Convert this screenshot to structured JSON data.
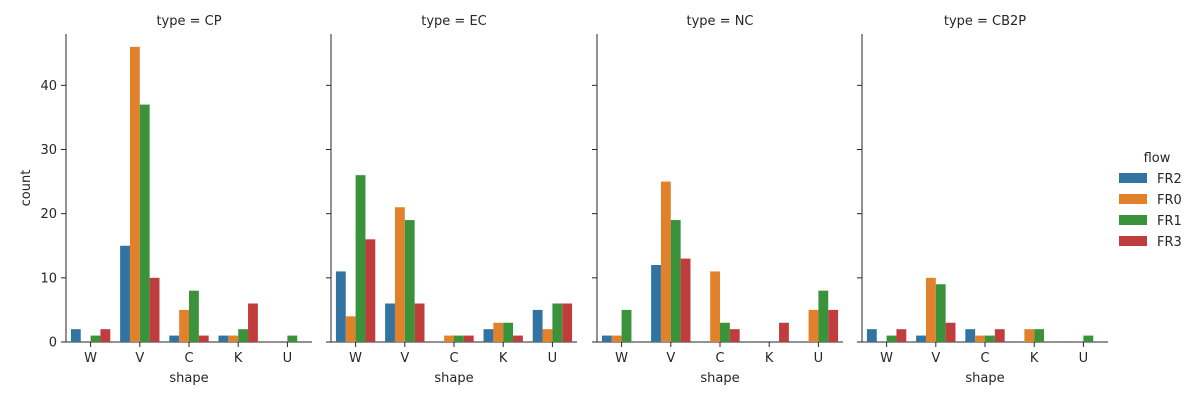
{
  "chart_data": {
    "type": "bar",
    "legend": {
      "title": "flow",
      "placement": "right",
      "entries": [
        "FR2",
        "FR0",
        "FR1",
        "FR3"
      ]
    },
    "series_colors": {
      "FR2": "#3274a1",
      "FR0": "#e1812c",
      "FR1": "#3a923a",
      "FR3": "#c03d3e"
    },
    "ylabel": "count",
    "xlabel": "shape",
    "ylim": [
      0,
      48
    ],
    "yticks": [
      0,
      10,
      20,
      30,
      40
    ],
    "categories": [
      "W",
      "V",
      "C",
      "K",
      "U"
    ],
    "panels": [
      {
        "title": "type = CP",
        "series": [
          {
            "name": "FR2",
            "values": [
              2,
              15,
              1,
              1,
              0
            ]
          },
          {
            "name": "FR0",
            "values": [
              0,
              46,
              5,
              1,
              0
            ]
          },
          {
            "name": "FR1",
            "values": [
              1,
              37,
              8,
              2,
              1
            ]
          },
          {
            "name": "FR3",
            "values": [
              2,
              10,
              1,
              6,
              0
            ]
          }
        ]
      },
      {
        "title": "type = EC",
        "series": [
          {
            "name": "FR2",
            "values": [
              11,
              6,
              0,
              2,
              5
            ]
          },
          {
            "name": "FR0",
            "values": [
              4,
              21,
              1,
              3,
              2
            ]
          },
          {
            "name": "FR1",
            "values": [
              26,
              19,
              1,
              3,
              6
            ]
          },
          {
            "name": "FR3",
            "values": [
              16,
              6,
              1,
              1,
              6
            ]
          }
        ]
      },
      {
        "title": "type = NC",
        "series": [
          {
            "name": "FR2",
            "values": [
              1,
              12,
              0,
              0,
              0
            ]
          },
          {
            "name": "FR0",
            "values": [
              1,
              25,
              11,
              0,
              5
            ]
          },
          {
            "name": "FR1",
            "values": [
              5,
              19,
              3,
              0,
              8
            ]
          },
          {
            "name": "FR3",
            "values": [
              0,
              13,
              2,
              3,
              5
            ]
          }
        ]
      },
      {
        "title": "type = CB2P",
        "series": [
          {
            "name": "FR2",
            "values": [
              2,
              1,
              2,
              0,
              0
            ]
          },
          {
            "name": "FR0",
            "values": [
              0,
              10,
              1,
              2,
              0
            ]
          },
          {
            "name": "FR1",
            "values": [
              1,
              9,
              1,
              2,
              1
            ]
          },
          {
            "name": "FR3",
            "values": [
              2,
              3,
              2,
              0,
              0
            ]
          }
        ]
      }
    ]
  }
}
